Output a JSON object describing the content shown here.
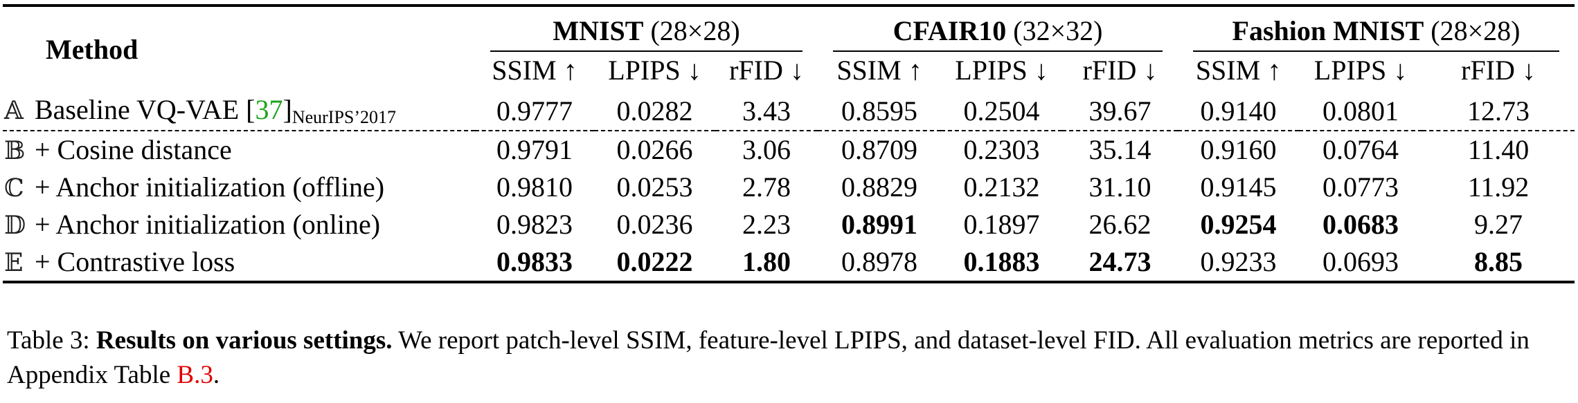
{
  "table": {
    "method_header": "Method",
    "groups": [
      {
        "name": "MNIST",
        "size": "(28×28)"
      },
      {
        "name": "CFAIR10",
        "size": "(32×32)"
      },
      {
        "name": "Fashion MNIST",
        "size": "(28×28)"
      }
    ],
    "metrics": [
      "SSIM ↑",
      "LPIPS ↓",
      "rFID ↓"
    ],
    "rows": [
      {
        "letter": "𝔸",
        "method": "Baseline VQ-VAE [",
        "cite": "37",
        "method_close": "]",
        "venue": "NeurIPS’2017",
        "values": [
          "0.9777",
          "0.0282",
          "3.43",
          "0.8595",
          "0.2504",
          "39.67",
          "0.9140",
          "0.0801",
          "12.73"
        ],
        "bold": [
          false,
          false,
          false,
          false,
          false,
          false,
          false,
          false,
          false
        ]
      },
      {
        "letter": "𝔹",
        "method": "+ Cosine distance",
        "values": [
          "0.9791",
          "0.0266",
          "3.06",
          "0.8709",
          "0.2303",
          "35.14",
          "0.9160",
          "0.0764",
          "11.40"
        ],
        "bold": [
          false,
          false,
          false,
          false,
          false,
          false,
          false,
          false,
          false
        ]
      },
      {
        "letter": "ℂ",
        "method": "+ Anchor initialization (offline)",
        "values": [
          "0.9810",
          "0.0253",
          "2.78",
          "0.8829",
          "0.2132",
          "31.10",
          "0.9145",
          "0.0773",
          "11.92"
        ],
        "bold": [
          false,
          false,
          false,
          false,
          false,
          false,
          false,
          false,
          false
        ]
      },
      {
        "letter": "𝔻",
        "method": "+ Anchor initialization (online)",
        "values": [
          "0.9823",
          "0.0236",
          "2.23",
          "0.8991",
          "0.1897",
          "26.62",
          "0.9254",
          "0.0683",
          "9.27"
        ],
        "bold": [
          false,
          false,
          false,
          true,
          false,
          false,
          true,
          true,
          false
        ]
      },
      {
        "letter": "𝔼",
        "method": "+ Contrastive loss",
        "values": [
          "0.9833",
          "0.0222",
          "1.80",
          "0.8978",
          "0.1883",
          "24.73",
          "0.9233",
          "0.0693",
          "8.85"
        ],
        "bold": [
          true,
          true,
          true,
          false,
          true,
          true,
          false,
          false,
          true
        ]
      }
    ]
  },
  "caption": {
    "label": "Table 3:",
    "title": "Results on various settings.",
    "text": "We report patch-level SSIM, feature-level LPIPS, and dataset-level FID. All evaluation metrics are reported in Appendix Table",
    "ref": "B.3",
    "end": "."
  }
}
